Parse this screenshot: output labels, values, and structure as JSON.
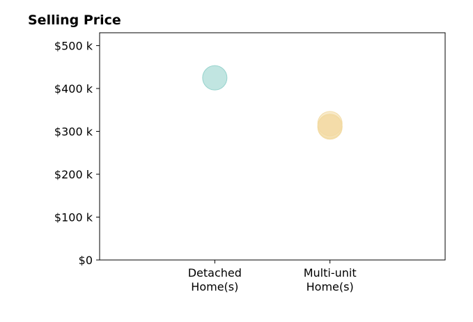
{
  "chart_data": {
    "type": "scatter",
    "title": "Selling Price",
    "xlabel": "",
    "ylabel": "",
    "categories": [
      [
        "Detached",
        "Home(s)"
      ],
      [
        "Multi-unit",
        "Home(s)"
      ]
    ],
    "x_range": [
      -1,
      2
    ],
    "ylim": [
      0,
      530000
    ],
    "y_ticks": [
      0,
      100000,
      200000,
      300000,
      400000,
      500000
    ],
    "y_tick_labels": [
      "$0",
      "$100 k",
      "$200 k",
      "$300 k",
      "$400 k",
      "$500 k"
    ],
    "grid": false,
    "legend": "none",
    "series": [
      {
        "color": "#8ecfc9",
        "points": [
          {
            "x": 0,
            "y": 425000
          }
        ]
      },
      {
        "color": "#f2d9a0",
        "points": [
          {
            "x": 1,
            "y": 318000
          },
          {
            "x": 1,
            "y": 310000
          },
          {
            "x": 1,
            "y": 312000
          }
        ]
      }
    ]
  }
}
